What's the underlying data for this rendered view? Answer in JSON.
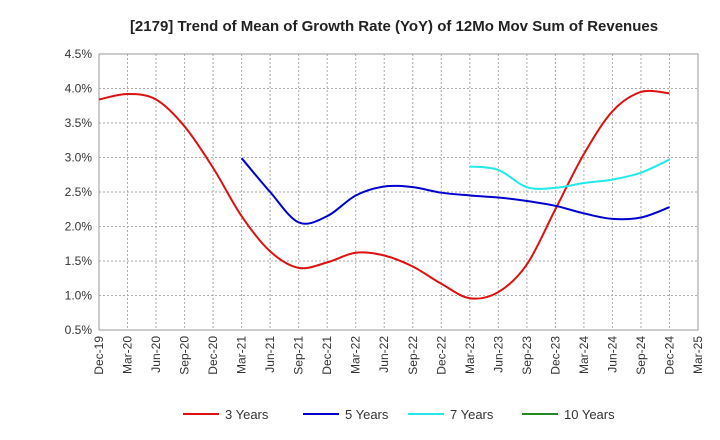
{
  "chart_data": {
    "type": "line",
    "title": "[2179]  Trend of Mean of Growth Rate (YoY) of 12Mo Mov Sum of Revenues",
    "xlabel": "",
    "ylabel": "",
    "categories": [
      "Dec-19",
      "Mar-20",
      "Jun-20",
      "Sep-20",
      "Dec-20",
      "Mar-21",
      "Jun-21",
      "Sep-21",
      "Dec-21",
      "Mar-22",
      "Jun-22",
      "Sep-22",
      "Dec-22",
      "Mar-23",
      "Jun-23",
      "Sep-23",
      "Dec-23",
      "Mar-24",
      "Jun-24",
      "Sep-24",
      "Dec-24",
      "Mar-25"
    ],
    "y_ticks": [
      "0.5%",
      "1.0%",
      "1.5%",
      "2.0%",
      "2.5%",
      "3.0%",
      "3.5%",
      "4.0%",
      "4.5%"
    ],
    "ylim": [
      0.5,
      4.5
    ],
    "grid": true,
    "legend_position": "bottom",
    "series": [
      {
        "name": "3 Years",
        "color": "#dd1111",
        "values": [
          3.84,
          3.92,
          3.84,
          3.45,
          2.85,
          2.15,
          1.64,
          1.4,
          1.48,
          1.62,
          1.58,
          1.42,
          1.17,
          0.96,
          1.05,
          1.45,
          2.25,
          3.05,
          3.67,
          3.95,
          3.93,
          null
        ]
      },
      {
        "name": "5 Years",
        "color": "#0000cc",
        "values": [
          null,
          null,
          null,
          null,
          null,
          2.99,
          2.5,
          2.06,
          2.15,
          2.45,
          2.58,
          2.57,
          2.49,
          2.45,
          2.42,
          2.37,
          2.3,
          2.19,
          2.11,
          2.13,
          2.28,
          null
        ]
      },
      {
        "name": "7 Years",
        "color": "#22e8e8",
        "values": [
          null,
          null,
          null,
          null,
          null,
          null,
          null,
          null,
          null,
          null,
          null,
          null,
          null,
          2.87,
          2.82,
          2.57,
          2.56,
          2.63,
          2.68,
          2.78,
          2.97,
          null
        ]
      },
      {
        "name": "10 Years",
        "color": "#228822",
        "values": [
          null,
          null,
          null,
          null,
          null,
          null,
          null,
          null,
          null,
          null,
          null,
          null,
          null,
          null,
          null,
          null,
          null,
          null,
          null,
          null,
          null,
          null
        ]
      }
    ]
  }
}
